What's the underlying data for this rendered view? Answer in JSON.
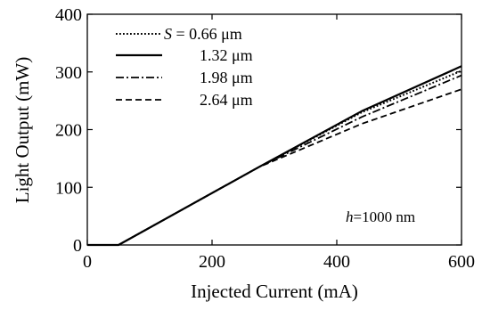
{
  "chart_data": {
    "type": "line",
    "xlabel": "Injected Current (mA)",
    "ylabel": "Light Output (mW)",
    "xlim": [
      0,
      600
    ],
    "ylim": [
      0,
      400
    ],
    "x_ticks": [
      "0",
      "200",
      "400",
      "600"
    ],
    "y_ticks": [
      "0",
      "100",
      "200",
      "300",
      "400"
    ],
    "grid": false,
    "legend_position": "top-left",
    "legend_labels": [
      {
        "prefix": "S",
        "text": " = 0.66 μm"
      },
      {
        "prefix": "",
        "text": "1.32 μm"
      },
      {
        "prefix": "",
        "text": "1.98 μm"
      },
      {
        "prefix": "",
        "text": "2.64 μm"
      }
    ],
    "annotation": {
      "prefix": "h",
      "text": "=1000 nm"
    },
    "series": [
      {
        "name": "S = 0.66 μm",
        "dash": "dotted",
        "points": [
          [
            0,
            0
          ],
          [
            50,
            0
          ],
          [
            275,
            135
          ],
          [
            440,
            230
          ],
          [
            600,
            302
          ]
        ]
      },
      {
        "name": "1.32 μm",
        "dash": "solid",
        "points": [
          [
            0,
            0
          ],
          [
            50,
            0
          ],
          [
            275,
            135
          ],
          [
            440,
            232
          ],
          [
            600,
            310
          ]
        ]
      },
      {
        "name": "1.98 μm",
        "dash": "dashdot",
        "points": [
          [
            0,
            0
          ],
          [
            50,
            0
          ],
          [
            275,
            135
          ],
          [
            440,
            222
          ],
          [
            600,
            294
          ]
        ]
      },
      {
        "name": "2.64 μm",
        "dash": "dashed",
        "points": [
          [
            0,
            0
          ],
          [
            50,
            0
          ],
          [
            275,
            135
          ],
          [
            440,
            210
          ],
          [
            600,
            270
          ]
        ]
      }
    ],
    "colors": {
      "line": "#000000",
      "background": "#ffffff"
    }
  }
}
